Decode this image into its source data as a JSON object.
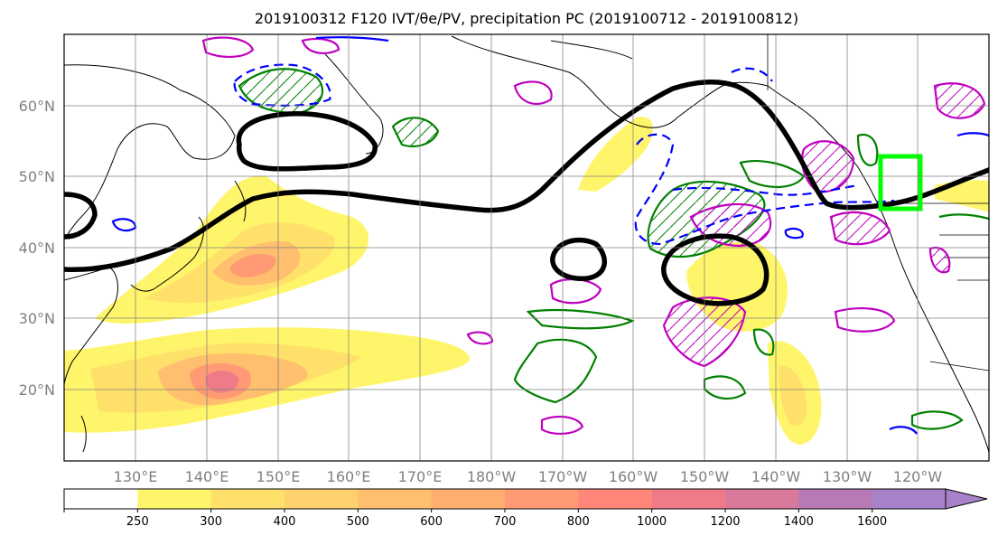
{
  "title": "2019100312 F120 IVT/θe/PV, precipitation PC (2019100712 - 2019100812)",
  "map": {
    "lat_labels": [
      "60°N",
      "50°N",
      "40°N",
      "30°N",
      "20°N"
    ],
    "lon_labels": [
      "130°E",
      "140°E",
      "150°E",
      "160°E",
      "170°E",
      "180°W",
      "170°W",
      "160°W",
      "150°W",
      "140°W",
      "130°W",
      "120°W"
    ],
    "extent": {
      "lon_min": 120,
      "lon_max": 250,
      "lat_min": 10,
      "lat_max": 70
    }
  },
  "colorbar": {
    "ticks": [
      "250",
      "300",
      "400",
      "500",
      "600",
      "700",
      "800",
      "1000",
      "1200",
      "1400",
      "1600"
    ],
    "colors": [
      "#ffffff",
      "#fff56a",
      "#ffe06a",
      "#ffd16c",
      "#ffbf6e",
      "#ffae72",
      "#ff9a74",
      "#ff8678",
      "#ef7a88",
      "#d97a9c",
      "#b77ab6",
      "#a882c8"
    ],
    "extend": "max"
  },
  "contour_colors": {
    "jet": "#000000",
    "pv_blue": "#0000ff",
    "green": "#008000",
    "magenta": "#c000c0",
    "target_box": "#00ff00"
  }
}
